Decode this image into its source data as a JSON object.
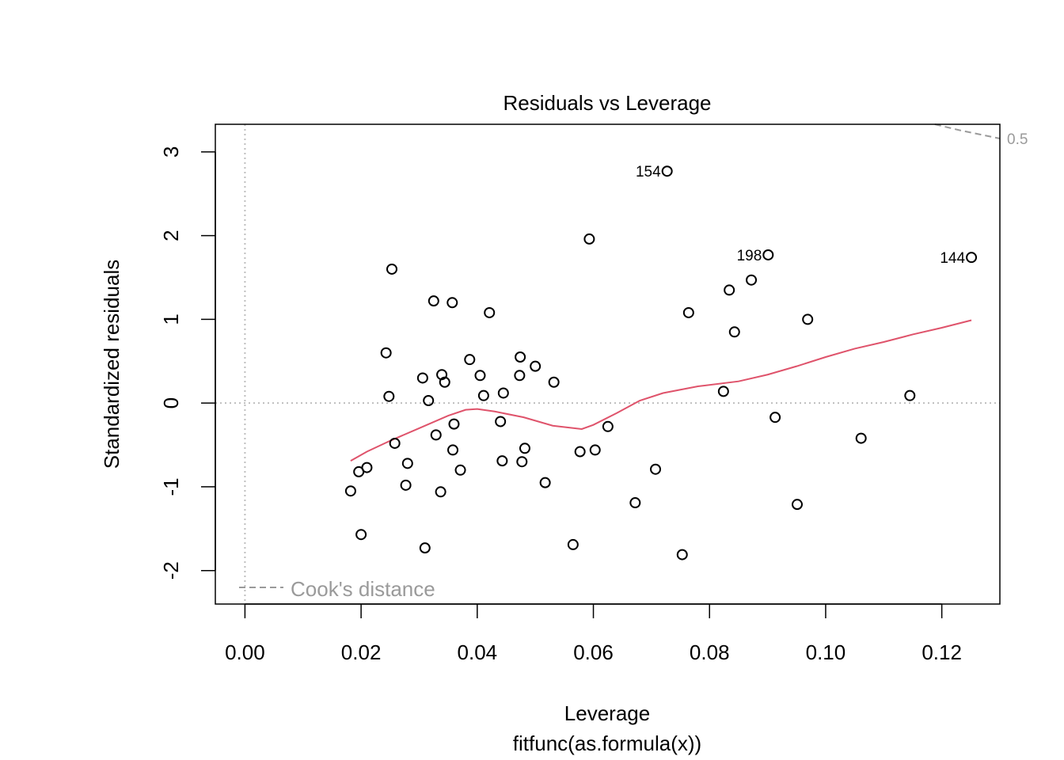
{
  "chart_data": {
    "type": "scatter",
    "title": "Residuals vs Leverage",
    "xlabel": "Leverage",
    "xlabel_sub": "fitfunc(as.formula(x))",
    "ylabel": "Standardized residuals",
    "xlim": [
      -0.0051,
      0.13
    ],
    "ylim": [
      -2.4,
      3.33
    ],
    "x_ticks": [
      0.0,
      0.02,
      0.04,
      0.06,
      0.08,
      0.1,
      0.12
    ],
    "x_tick_labels": [
      "0.00",
      "0.02",
      "0.04",
      "0.06",
      "0.08",
      "0.10",
      "0.12"
    ],
    "y_ticks": [
      -2,
      -1,
      0,
      1,
      2,
      3
    ],
    "y_tick_labels": [
      "-2",
      "-1",
      "0",
      "1",
      "2",
      "3"
    ],
    "reference_lines": {
      "h": 0,
      "v": 0,
      "style": "dotted",
      "color": "#bebebe"
    },
    "colors": {
      "points": "#000000",
      "smooth": "#df536b",
      "cooks": "#9a9a9a",
      "reference": "#bebebe"
    },
    "points": [
      {
        "x": 0.0182,
        "y": -1.05
      },
      {
        "x": 0.0196,
        "y": -0.82
      },
      {
        "x": 0.02,
        "y": -1.57
      },
      {
        "x": 0.021,
        "y": -0.77
      },
      {
        "x": 0.0243,
        "y": 0.6
      },
      {
        "x": 0.0248,
        "y": 0.08
      },
      {
        "x": 0.0253,
        "y": 1.6
      },
      {
        "x": 0.0258,
        "y": -0.48
      },
      {
        "x": 0.0277,
        "y": -0.98
      },
      {
        "x": 0.028,
        "y": -0.72
      },
      {
        "x": 0.0306,
        "y": 0.3
      },
      {
        "x": 0.031,
        "y": -1.73
      },
      {
        "x": 0.0316,
        "y": 0.03
      },
      {
        "x": 0.0325,
        "y": 1.22
      },
      {
        "x": 0.0329,
        "y": -0.38
      },
      {
        "x": 0.0337,
        "y": -1.06
      },
      {
        "x": 0.0339,
        "y": 0.34
      },
      {
        "x": 0.0344,
        "y": 0.25
      },
      {
        "x": 0.0357,
        "y": 1.2
      },
      {
        "x": 0.0358,
        "y": -0.56
      },
      {
        "x": 0.036,
        "y": -0.25
      },
      {
        "x": 0.0371,
        "y": -0.8
      },
      {
        "x": 0.0387,
        "y": 0.52
      },
      {
        "x": 0.0405,
        "y": 0.33
      },
      {
        "x": 0.0411,
        "y": 0.09
      },
      {
        "x": 0.0421,
        "y": 1.08
      },
      {
        "x": 0.044,
        "y": -0.22
      },
      {
        "x": 0.0443,
        "y": -0.69
      },
      {
        "x": 0.0445,
        "y": 0.12
      },
      {
        "x": 0.0473,
        "y": 0.33
      },
      {
        "x": 0.0474,
        "y": 0.55
      },
      {
        "x": 0.0477,
        "y": -0.7
      },
      {
        "x": 0.0482,
        "y": -0.54
      },
      {
        "x": 0.05,
        "y": 0.44
      },
      {
        "x": 0.0517,
        "y": -0.95
      },
      {
        "x": 0.0532,
        "y": 0.25
      },
      {
        "x": 0.0565,
        "y": -1.69
      },
      {
        "x": 0.0577,
        "y": -0.58
      },
      {
        "x": 0.0593,
        "y": 1.96
      },
      {
        "x": 0.0603,
        "y": -0.56
      },
      {
        "x": 0.0625,
        "y": -0.28
      },
      {
        "x": 0.0672,
        "y": -1.19
      },
      {
        "x": 0.0707,
        "y": -0.79
      },
      {
        "x": 0.0727,
        "y": 2.77,
        "label": "154"
      },
      {
        "x": 0.0753,
        "y": -1.81
      },
      {
        "x": 0.0764,
        "y": 1.08
      },
      {
        "x": 0.0824,
        "y": 0.14
      },
      {
        "x": 0.0834,
        "y": 1.35
      },
      {
        "x": 0.0843,
        "y": 0.85
      },
      {
        "x": 0.0872,
        "y": 1.47
      },
      {
        "x": 0.0901,
        "y": 1.77,
        "label": "198"
      },
      {
        "x": 0.0913,
        "y": -0.17
      },
      {
        "x": 0.0951,
        "y": -1.21
      },
      {
        "x": 0.0969,
        "y": 1.0
      },
      {
        "x": 0.1061,
        "y": -0.42
      },
      {
        "x": 0.1145,
        "y": 0.09
      },
      {
        "x": 0.1251,
        "y": 1.74,
        "label": "144"
      }
    ],
    "smooth_line": {
      "x": [
        0.0182,
        0.021,
        0.025,
        0.03,
        0.035,
        0.038,
        0.04,
        0.043,
        0.048,
        0.053,
        0.058,
        0.06,
        0.064,
        0.068,
        0.072,
        0.078,
        0.085,
        0.09,
        0.095,
        0.1,
        0.105,
        0.11,
        0.115,
        0.12,
        0.1251
      ],
      "y": [
        -0.69,
        -0.58,
        -0.45,
        -0.3,
        -0.15,
        -0.08,
        -0.07,
        -0.1,
        -0.17,
        -0.27,
        -0.31,
        -0.26,
        -0.12,
        0.03,
        0.12,
        0.2,
        0.26,
        0.34,
        0.44,
        0.55,
        0.65,
        0.73,
        0.82,
        0.9,
        0.99
      ]
    },
    "cooks_contour": {
      "label": "0.5",
      "x": [
        0.1188,
        0.123,
        0.13
      ],
      "y": [
        3.33,
        3.26,
        3.16
      ]
    },
    "legend": {
      "label": "Cook's distance",
      "position": "bottom-left",
      "line_style": "dashed"
    }
  }
}
